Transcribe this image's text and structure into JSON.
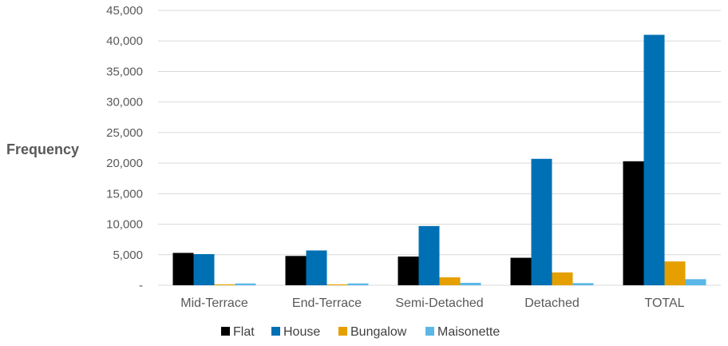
{
  "chart_data": {
    "type": "bar",
    "title": "",
    "xlabel": "",
    "ylabel": "Frequency",
    "ylim": [
      0,
      45000
    ],
    "yticks": [
      {
        "value": 0,
        "label": "-"
      },
      {
        "value": 5000,
        "label": "5,000"
      },
      {
        "value": 10000,
        "label": "10,000"
      },
      {
        "value": 15000,
        "label": "15,000"
      },
      {
        "value": 20000,
        "label": "20,000"
      },
      {
        "value": 25000,
        "label": "25,000"
      },
      {
        "value": 30000,
        "label": "30,000"
      },
      {
        "value": 35000,
        "label": "35,000"
      },
      {
        "value": 40000,
        "label": "40,000"
      },
      {
        "value": 45000,
        "label": "45,000"
      }
    ],
    "grid": true,
    "legend_position": "bottom",
    "categories": [
      "Mid-Terrace",
      "End-Terrace",
      "Semi-Detached",
      "Detached",
      "TOTAL"
    ],
    "series": [
      {
        "name": "Flat",
        "color": "#000000",
        "values": [
          5300,
          4800,
          4700,
          4500,
          20300
        ]
      },
      {
        "name": "House",
        "color": "#0070b4",
        "values": [
          5100,
          5700,
          9700,
          20700,
          41000
        ]
      },
      {
        "name": "Bungalow",
        "color": "#e5a000",
        "values": [
          150,
          150,
          1300,
          2100,
          3900
        ]
      },
      {
        "name": "Maisonette",
        "color": "#5bb8e6",
        "values": [
          300,
          300,
          400,
          350,
          1000
        ]
      }
    ]
  }
}
